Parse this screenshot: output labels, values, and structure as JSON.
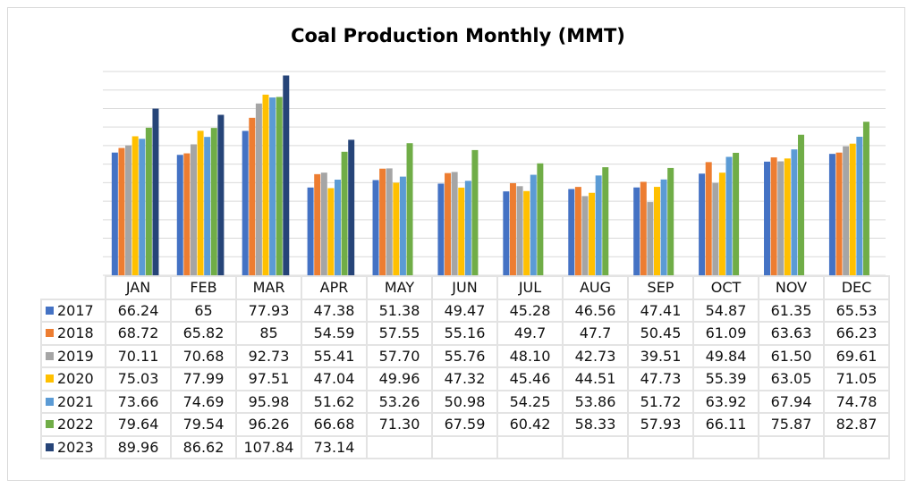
{
  "chart_data": {
    "type": "bar",
    "title": "Coal Production Monthly (MMT)",
    "categories": [
      "JAN",
      "FEB",
      "MAR",
      "APR",
      "MAY",
      "JUN",
      "JUL",
      "AUG",
      "SEP",
      "OCT",
      "NOV",
      "DEC"
    ],
    "ylim": [
      0,
      110
    ],
    "grid": true,
    "legend": "data-table",
    "series": [
      {
        "name": "2017",
        "color": "#4472c4",
        "values": [
          "66.24",
          "65",
          "77.93",
          "47.38",
          "51.38",
          "49.47",
          "45.28",
          "46.56",
          "47.41",
          "54.87",
          "61.35",
          "65.53"
        ]
      },
      {
        "name": "2018",
        "color": "#ed7d31",
        "values": [
          "68.72",
          "65.82",
          "85",
          "54.59",
          "57.55",
          "55.16",
          "49.7",
          "47.7",
          "50.45",
          "61.09",
          "63.63",
          "66.23"
        ]
      },
      {
        "name": "2019",
        "color": "#a5a5a5",
        "values": [
          "70.11",
          "70.68",
          "92.73",
          "55.41",
          "57.70",
          "55.76",
          "48.10",
          "42.73",
          "39.51",
          "49.84",
          "61.50",
          "69.61"
        ]
      },
      {
        "name": "2020",
        "color": "#ffc000",
        "values": [
          "75.03",
          "77.99",
          "97.51",
          "47.04",
          "49.96",
          "47.32",
          "45.46",
          "44.51",
          "47.73",
          "55.39",
          "63.05",
          "71.05"
        ]
      },
      {
        "name": "2021",
        "color": "#5b9bd5",
        "values": [
          "73.66",
          "74.69",
          "95.98",
          "51.62",
          "53.26",
          "50.98",
          "54.25",
          "53.86",
          "51.72",
          "63.92",
          "67.94",
          "74.78"
        ]
      },
      {
        "name": "2022",
        "color": "#70ad47",
        "values": [
          "79.64",
          "79.54",
          "96.26",
          "66.68",
          "71.30",
          "67.59",
          "60.42",
          "58.33",
          "57.93",
          "66.11",
          "75.87",
          "82.87"
        ]
      },
      {
        "name": "2023",
        "color": "#264478",
        "values": [
          "89.96",
          "86.62",
          "107.84",
          "73.14",
          "",
          "",
          "",
          "",
          "",
          "",
          "",
          ""
        ]
      }
    ]
  }
}
